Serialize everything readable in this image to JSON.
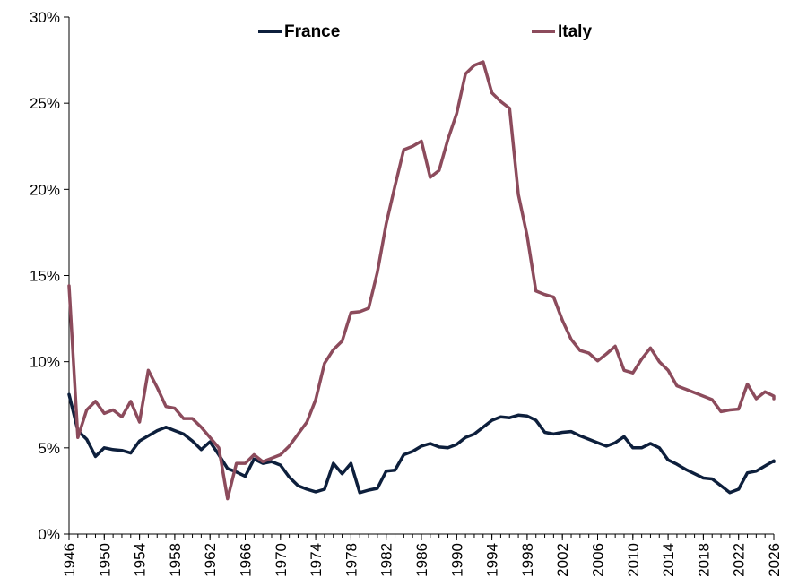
{
  "chart_data": {
    "type": "line",
    "title": "",
    "xlabel": "",
    "ylabel": "",
    "xlim": [
      1946,
      2026
    ],
    "ylim": [
      0,
      30
    ],
    "y_ticks": [
      "0%",
      "5%",
      "10%",
      "15%",
      "20%",
      "25%",
      "30%"
    ],
    "x_ticks": [
      "1946",
      "1950",
      "1954",
      "1958",
      "1962",
      "1966",
      "1970",
      "1974",
      "1978",
      "1982",
      "1986",
      "1990",
      "1994",
      "1998",
      "2002",
      "2006",
      "2010",
      "2014",
      "2018",
      "2022",
      "2026"
    ],
    "grid": false,
    "legend_position": "top",
    "series": [
      {
        "name": "France",
        "color": "#0d1f3c",
        "points": [
          [
            1946,
            8.1
          ],
          [
            1947,
            6.0
          ],
          [
            1948,
            5.5
          ],
          [
            1949,
            4.5
          ],
          [
            1950,
            5.0
          ],
          [
            1951,
            4.9
          ],
          [
            1952,
            4.85
          ],
          [
            1953,
            4.7
          ],
          [
            1954,
            5.4
          ],
          [
            1955,
            5.7
          ],
          [
            1956,
            6.0
          ],
          [
            1957,
            6.2
          ],
          [
            1958,
            6.0
          ],
          [
            1959,
            5.8
          ],
          [
            1960,
            5.4
          ],
          [
            1961,
            4.9
          ],
          [
            1962,
            5.35
          ],
          [
            1963,
            4.6
          ],
          [
            1964,
            3.8
          ],
          [
            1965,
            3.6
          ],
          [
            1966,
            3.35
          ],
          [
            1967,
            4.35
          ],
          [
            1968,
            4.1
          ],
          [
            1969,
            4.2
          ],
          [
            1970,
            4.0
          ],
          [
            1971,
            3.3
          ],
          [
            1972,
            2.8
          ],
          [
            1973,
            2.6
          ],
          [
            1974,
            2.45
          ],
          [
            1975,
            2.6
          ],
          [
            1976,
            4.1
          ],
          [
            1977,
            3.5
          ],
          [
            1978,
            4.1
          ],
          [
            1979,
            2.4
          ],
          [
            1980,
            2.55
          ],
          [
            1981,
            2.65
          ],
          [
            1982,
            3.65
          ],
          [
            1983,
            3.7
          ],
          [
            1984,
            4.6
          ],
          [
            1985,
            4.8
          ],
          [
            1986,
            5.1
          ],
          [
            1987,
            5.25
          ],
          [
            1988,
            5.05
          ],
          [
            1989,
            5.0
          ],
          [
            1990,
            5.2
          ],
          [
            1991,
            5.6
          ],
          [
            1992,
            5.8
          ],
          [
            1993,
            6.2
          ],
          [
            1994,
            6.6
          ],
          [
            1995,
            6.8
          ],
          [
            1996,
            6.75
          ],
          [
            1997,
            6.9
          ],
          [
            1998,
            6.85
          ],
          [
            1999,
            6.6
          ],
          [
            2000,
            5.9
          ],
          [
            2001,
            5.8
          ],
          [
            2002,
            5.9
          ],
          [
            2003,
            5.95
          ],
          [
            2004,
            5.7
          ],
          [
            2005,
            5.5
          ],
          [
            2006,
            5.3
          ],
          [
            2007,
            5.1
          ],
          [
            2008,
            5.3
          ],
          [
            2009,
            5.65
          ],
          [
            2010,
            5.0
          ],
          [
            2011,
            5.0
          ],
          [
            2012,
            5.25
          ],
          [
            2013,
            5.0
          ],
          [
            2014,
            4.3
          ],
          [
            2015,
            4.05
          ],
          [
            2016,
            3.75
          ],
          [
            2017,
            3.5
          ],
          [
            2018,
            3.25
          ],
          [
            2019,
            3.2
          ],
          [
            2020,
            2.8
          ],
          [
            2021,
            2.4
          ],
          [
            2022,
            2.6
          ],
          [
            2023,
            3.55
          ],
          [
            2024,
            3.65
          ],
          [
            2025,
            3.95
          ],
          [
            2026,
            4.25
          ],
          [
            2027,
            4.2
          ]
        ]
      },
      {
        "name": "Italy",
        "color": "#8c4b5c",
        "points": [
          [
            1946,
            14.4
          ],
          [
            1947,
            5.6
          ],
          [
            1948,
            7.2
          ],
          [
            1949,
            7.7
          ],
          [
            1950,
            7.0
          ],
          [
            1951,
            7.2
          ],
          [
            1952,
            6.8
          ],
          [
            1953,
            7.7
          ],
          [
            1954,
            6.5
          ],
          [
            1955,
            9.5
          ],
          [
            1956,
            8.5
          ],
          [
            1957,
            7.4
          ],
          [
            1958,
            7.3
          ],
          [
            1959,
            6.7
          ],
          [
            1960,
            6.7
          ],
          [
            1961,
            6.2
          ],
          [
            1962,
            5.6
          ],
          [
            1963,
            5.0
          ],
          [
            1964,
            2.05
          ],
          [
            1965,
            4.1
          ],
          [
            1966,
            4.1
          ],
          [
            1967,
            4.6
          ],
          [
            1968,
            4.2
          ],
          [
            1969,
            4.4
          ],
          [
            1970,
            4.6
          ],
          [
            1971,
            5.1
          ],
          [
            1972,
            5.8
          ],
          [
            1973,
            6.5
          ],
          [
            1974,
            7.8
          ],
          [
            1975,
            9.9
          ],
          [
            1976,
            10.7
          ],
          [
            1977,
            11.2
          ],
          [
            1978,
            12.85
          ],
          [
            1979,
            12.9
          ],
          [
            1980,
            13.1
          ],
          [
            1981,
            15.2
          ],
          [
            1982,
            18.0
          ],
          [
            1983,
            20.2
          ],
          [
            1984,
            22.3
          ],
          [
            1985,
            22.5
          ],
          [
            1986,
            22.8
          ],
          [
            1987,
            20.7
          ],
          [
            1988,
            21.1
          ],
          [
            1989,
            22.9
          ],
          [
            1990,
            24.4
          ],
          [
            1991,
            26.7
          ],
          [
            1992,
            27.2
          ],
          [
            1993,
            27.4
          ],
          [
            1994,
            25.6
          ],
          [
            1995,
            25.1
          ],
          [
            1996,
            24.7
          ],
          [
            1997,
            19.7
          ],
          [
            1998,
            17.3
          ],
          [
            1999,
            14.1
          ],
          [
            2000,
            13.9
          ],
          [
            2001,
            13.75
          ],
          [
            2002,
            12.4
          ],
          [
            2003,
            11.3
          ],
          [
            2004,
            10.65
          ],
          [
            2005,
            10.5
          ],
          [
            2006,
            10.05
          ],
          [
            2007,
            10.45
          ],
          [
            2008,
            10.9
          ],
          [
            2009,
            9.5
          ],
          [
            2010,
            9.35
          ],
          [
            2011,
            10.15
          ],
          [
            2012,
            10.8
          ],
          [
            2013,
            10.0
          ],
          [
            2014,
            9.5
          ],
          [
            2015,
            8.6
          ],
          [
            2016,
            8.4
          ],
          [
            2017,
            8.2
          ],
          [
            2018,
            8.0
          ],
          [
            2019,
            7.8
          ],
          [
            2020,
            7.1
          ],
          [
            2021,
            7.2
          ],
          [
            2022,
            7.25
          ],
          [
            2023,
            8.7
          ],
          [
            2024,
            7.85
          ],
          [
            2025,
            8.25
          ],
          [
            2026,
            8.0
          ],
          [
            2027,
            7.85
          ]
        ]
      }
    ]
  }
}
